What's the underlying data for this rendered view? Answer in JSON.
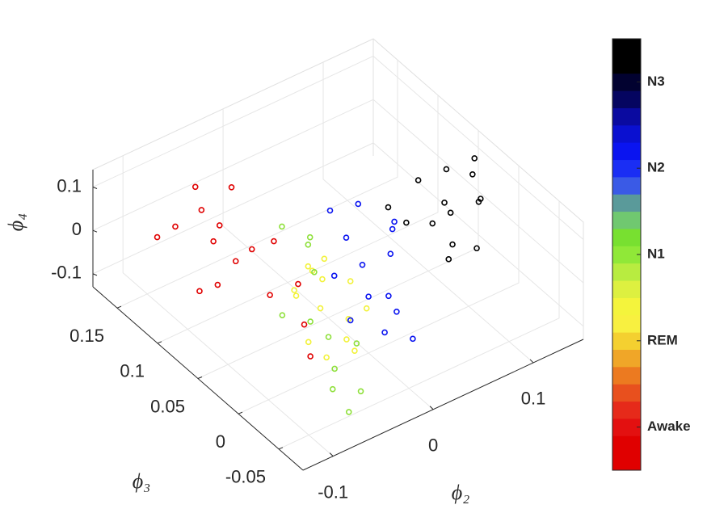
{
  "chart_data": {
    "type": "scatter3d",
    "x_label": "ϕ₂",
    "y_label": "ϕ₃",
    "z_label": "ϕ₄",
    "xlim": [
      -0.13,
      0.15
    ],
    "ylim": [
      -0.08,
      0.18
    ],
    "zlim": [
      -0.13,
      0.14
    ],
    "xticks": [
      -0.1,
      0,
      0.1
    ],
    "yticks": [
      -0.05,
      0,
      0.05,
      0.1,
      0.15
    ],
    "zticks": [
      -0.1,
      0,
      0.1
    ],
    "grid": true,
    "series": [
      {
        "color": "#f2f23a",
        "x": [
          -0.04,
          -0.03,
          -0.02,
          -0.05,
          -0.03,
          -0.01,
          -0.04,
          -0.02,
          -0.06,
          -0.03,
          -0.01,
          -0.04,
          -0.02,
          -0.05
        ],
        "y": [
          0.01,
          0.02,
          0.0,
          0.03,
          -0.01,
          0.01,
          0.04,
          0.03,
          0.0,
          -0.02,
          -0.01,
          0.02,
          0.05,
          -0.01
        ],
        "z": [
          0.0,
          0.04,
          -0.03,
          0.02,
          -0.05,
          0.03,
          -0.02,
          0.06,
          -0.04,
          -0.06,
          0.0,
          0.07,
          0.01,
          -0.07
        ]
      },
      {
        "color": "#8ee03a",
        "x": [
          -0.05,
          -0.04,
          -0.06,
          -0.03,
          -0.02,
          -0.05,
          -0.04,
          -0.07,
          -0.03,
          -0.02,
          -0.06,
          -0.01
        ],
        "y": [
          -0.02,
          0.0,
          -0.03,
          0.03,
          0.05,
          0.01,
          -0.04,
          0.02,
          0.07,
          -0.01,
          -0.05,
          0.06
        ],
        "z": [
          -0.08,
          -0.05,
          -0.1,
          0.04,
          0.06,
          -0.02,
          -0.11,
          0.0,
          0.08,
          -0.07,
          -0.12,
          0.05
        ]
      },
      {
        "color": "#e00000",
        "x": [
          -0.08,
          -0.07,
          -0.06,
          -0.05,
          -0.09,
          -0.06,
          -0.04,
          -0.07,
          -0.05,
          -0.03,
          -0.06,
          -0.08,
          -0.04,
          -0.05,
          -0.03,
          -0.06
        ],
        "y": [
          0.14,
          0.12,
          0.11,
          0.13,
          0.15,
          0.09,
          0.12,
          0.1,
          0.06,
          0.08,
          0.14,
          0.11,
          0.03,
          0.01,
          0.05,
          0.07
        ],
        "z": [
          0.02,
          0.08,
          0.05,
          -0.03,
          -0.01,
          0.0,
          0.1,
          -0.06,
          -0.04,
          0.03,
          0.09,
          -0.08,
          -0.07,
          -0.1,
          -0.02,
          0.06
        ]
      },
      {
        "color": "#0a14f0",
        "x": [
          0.0,
          0.01,
          0.02,
          0.03,
          0.01,
          -0.01,
          0.02,
          0.04,
          0.0,
          0.03,
          0.05,
          0.01,
          0.02,
          -0.01
        ],
        "y": [
          0.0,
          0.02,
          -0.01,
          0.01,
          0.04,
          0.03,
          -0.03,
          0.02,
          -0.02,
          0.05,
          0.03,
          0.06,
          0.0,
          0.01
        ],
        "z": [
          0.0,
          0.03,
          -0.04,
          0.05,
          0.06,
          0.01,
          -0.07,
          0.08,
          -0.05,
          0.1,
          0.07,
          0.09,
          -0.02,
          -0.06
        ]
      },
      {
        "color": "#000000",
        "x": [
          0.08,
          0.09,
          0.1,
          0.11,
          0.12,
          0.07,
          0.09,
          0.1,
          0.13,
          0.08,
          0.11,
          0.06,
          0.12,
          0.1
        ],
        "y": [
          0.02,
          0.01,
          0.03,
          0.0,
          0.02,
          0.04,
          0.05,
          -0.01,
          0.03,
          0.0,
          0.04,
          0.05,
          0.01,
          0.02
        ],
        "z": [
          0.05,
          0.08,
          0.06,
          0.1,
          0.12,
          0.03,
          0.09,
          0.02,
          0.13,
          0.0,
          0.11,
          0.06,
          0.08,
          -0.02
        ]
      }
    ],
    "colorbar": {
      "clim": [
        0.5,
        5.5
      ],
      "ticks": [
        {
          "value": 1,
          "label": "Awake"
        },
        {
          "value": 2,
          "label": "REM"
        },
        {
          "value": 3,
          "label": "N1"
        },
        {
          "value": 4,
          "label": "N2"
        },
        {
          "value": 5,
          "label": "N3"
        }
      ],
      "colors": [
        "#e00000",
        "#e00000",
        "#e31010",
        "#e62a1a",
        "#e8501e",
        "#ec7a20",
        "#f0a628",
        "#f4d030",
        "#f8f040",
        "#f4f43c",
        "#ddf040",
        "#b8ec40",
        "#90e838",
        "#78e030",
        "#70c870",
        "#5a9a9a",
        "#3a5ae6",
        "#1a2ef4",
        "#0a14f0",
        "#0a10d0",
        "#0a0aa0",
        "#050560",
        "#020230",
        "#000000",
        "#000000"
      ]
    }
  }
}
